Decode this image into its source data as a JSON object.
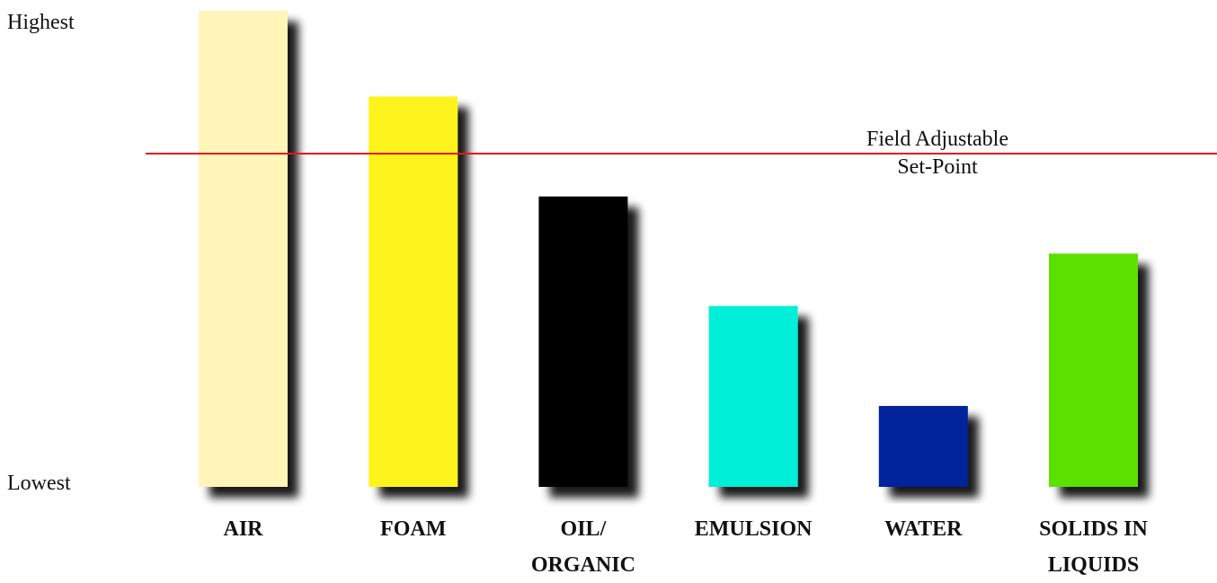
{
  "chart_data": {
    "type": "bar",
    "categories": [
      "AIR",
      "FOAM",
      "OIL/\nORGANIC",
      "EMULSION",
      "WATER",
      "SOLIDS IN\nLIQUIDS"
    ],
    "values": [
      100,
      82,
      61,
      38,
      17,
      49
    ],
    "ylim": [
      0,
      100
    ],
    "ytick_labels": {
      "top": "Highest",
      "bottom": "Lowest"
    },
    "bar_colors": [
      "#FFF5B8",
      "#FDF31F",
      "#000000",
      "#00EFD9",
      "#04209B",
      "#5BE000"
    ],
    "threshold": {
      "value": 70,
      "label": [
        "Field Adjustable",
        "Set-Point"
      ],
      "color": "#E8141E"
    },
    "grid": false,
    "legend": "none"
  }
}
